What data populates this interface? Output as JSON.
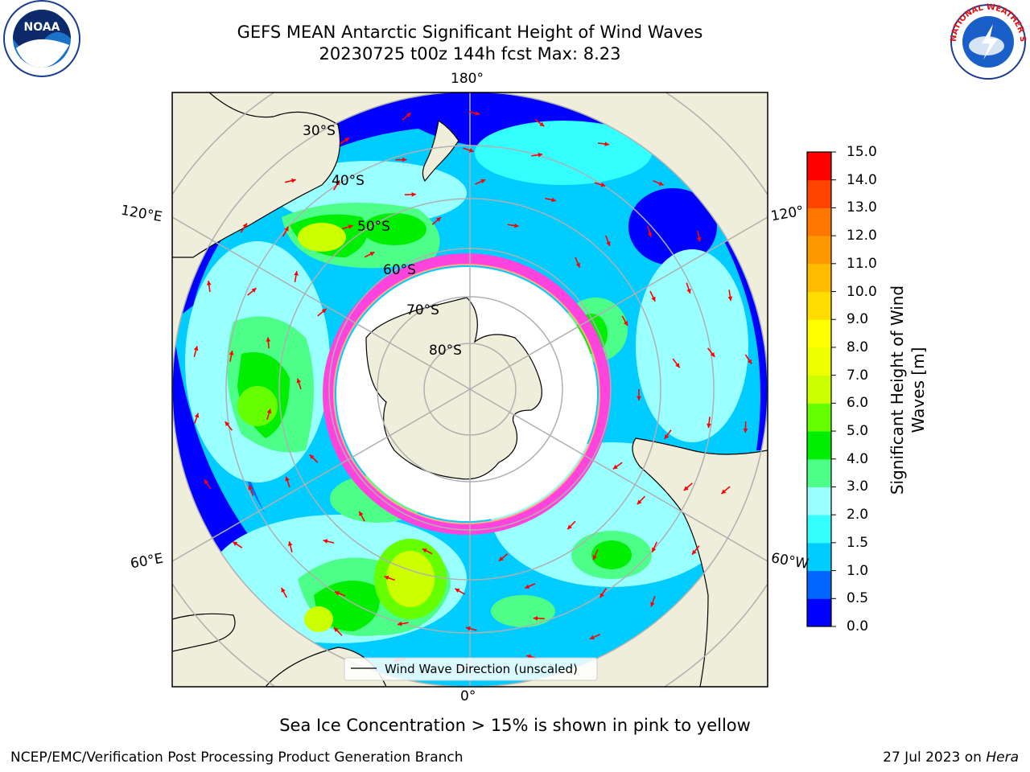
{
  "header": {
    "title_line1": "GEFS MEAN Antarctic Significant Height of Wind Waves",
    "title_line2": "20230725 t00z 144h fcst   Max: 8.23"
  },
  "logos": {
    "noaa": "NOAA",
    "nws_text": "NATIONAL WEATHER SERVICE"
  },
  "map": {
    "projection": "south-polar-stereographic",
    "longitude_labels": {
      "top": "180°",
      "bottom": "0°",
      "upper_left": "120°E",
      "upper_right": "120°",
      "lower_left": "60°E",
      "lower_right": "60°W"
    },
    "latitude_labels": [
      "30°S",
      "40°S",
      "50°S",
      "60°S",
      "70°S",
      "80°S"
    ],
    "legend_entry": "Wind Wave Direction (unscaled)",
    "colors": {
      "land": "#efeedb",
      "arrow": "#ff0000",
      "sea_ice": "#ff44dd",
      "grid": "#b0b0b0"
    }
  },
  "colorbar": {
    "label": "Significant Height of Wind Waves [m]",
    "ticks": [
      "0.0",
      "0.5",
      "1.0",
      "1.5",
      "2.0",
      "3.0",
      "4.0",
      "5.0",
      "6.0",
      "7.0",
      "8.0",
      "9.0",
      "10.0",
      "11.0",
      "12.0",
      "13.0",
      "14.0",
      "15.0"
    ],
    "colors": [
      "#0000ff",
      "#0066ff",
      "#00ccff",
      "#33ffff",
      "#99ffff",
      "#4dff88",
      "#00ee00",
      "#66ff00",
      "#ccff00",
      "#eeff00",
      "#ffff00",
      "#ffdd00",
      "#ffbb00",
      "#ff9900",
      "#ff7700",
      "#ff4400",
      "#ff0000"
    ]
  },
  "footer": {
    "note": "Sea Ice Concentration > 15% is shown in pink to yellow",
    "credit": "NCEP/EMC/Verification Post Processing Product Generation Branch",
    "date_prefix": "27 Jul 2023 on ",
    "machine": "Hera"
  }
}
